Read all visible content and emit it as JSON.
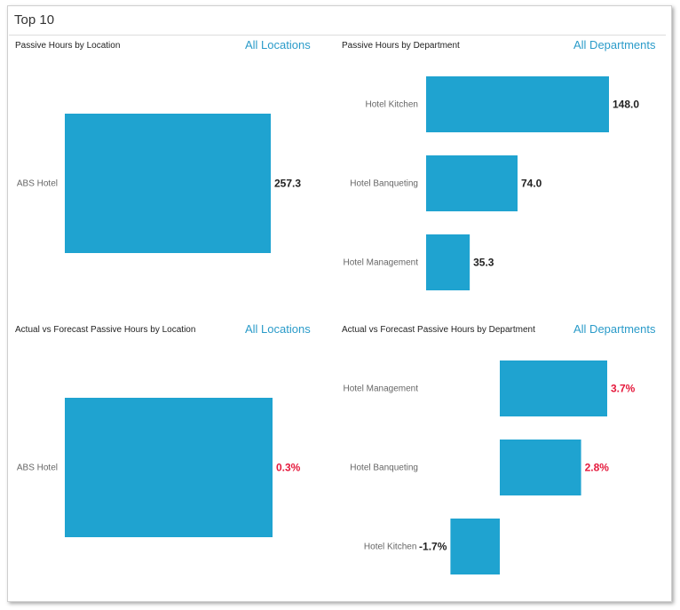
{
  "widget": {
    "title": "Top 10"
  },
  "colors": {
    "bar": "#1fa3d0",
    "positive_value": "#e5193c",
    "default_value": "#222222",
    "link": "#2a9bc9"
  },
  "chart_data": [
    {
      "id": "loc",
      "type": "bar",
      "orientation": "horizontal",
      "title": "Passive Hours by Location",
      "filter_label": "All Locations",
      "categories": [
        "ABS Hotel"
      ],
      "values": [
        257.3
      ],
      "labels": [
        "257.3"
      ],
      "value_format": "number"
    },
    {
      "id": "dept",
      "type": "bar",
      "orientation": "horizontal",
      "title": "Passive Hours by Department",
      "filter_label": "All Departments",
      "categories": [
        "Hotel Kitchen",
        "Hotel Banqueting",
        "Hotel Management"
      ],
      "values": [
        148.0,
        74.0,
        35.3
      ],
      "labels": [
        "148.0",
        "74.0",
        "35.3"
      ],
      "value_format": "number"
    },
    {
      "id": "avf-loc",
      "type": "bar",
      "orientation": "horizontal",
      "title": "Actual vs Forecast Passive Hours by Location",
      "filter_label": "All Locations",
      "categories": [
        "ABS Hotel"
      ],
      "values": [
        0.3
      ],
      "labels": [
        "0.3%"
      ],
      "value_format": "percent"
    },
    {
      "id": "avf-dept",
      "type": "bar",
      "orientation": "horizontal",
      "title": "Actual vs Forecast Passive Hours by Department",
      "filter_label": "All Departments",
      "categories": [
        "Hotel Management",
        "Hotel Banqueting",
        "Hotel Kitchen"
      ],
      "values": [
        3.7,
        2.8,
        -1.7
      ],
      "labels": [
        "3.7%",
        "2.8%",
        "-1.7%"
      ],
      "value_format": "percent"
    }
  ]
}
